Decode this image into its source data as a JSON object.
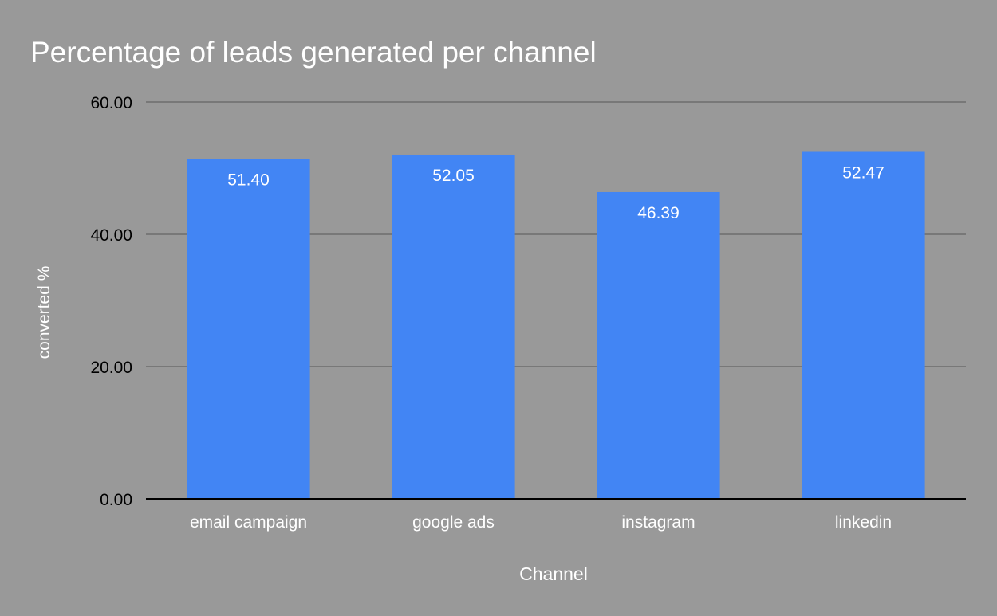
{
  "chart_data": {
    "type": "bar",
    "title": "Percentage of leads generated per channel",
    "xlabel": "Channel",
    "ylabel": "converted %",
    "categories": [
      "email campaign",
      "google ads",
      "instagram",
      "linkedin"
    ],
    "values": [
      51.4,
      52.05,
      46.39,
      52.47
    ],
    "value_labels": [
      "51.40",
      "52.05",
      "46.39",
      "52.47"
    ],
    "ylim": [
      0,
      60
    ],
    "yticks": [
      0,
      20,
      40,
      60
    ],
    "ytick_labels": [
      "0.00",
      "20.00",
      "40.00",
      "60.00"
    ],
    "grid": true,
    "legend": "none",
    "colors": {
      "background": "#999999",
      "bar": "#4285f4",
      "grid": "#6e6e6e",
      "axis": "#000000",
      "title": "#ffffff",
      "axis_title": "#ffffff",
      "category_label": "#ffffff",
      "value_label": "#ffffff",
      "tick_label": "#000000"
    }
  }
}
